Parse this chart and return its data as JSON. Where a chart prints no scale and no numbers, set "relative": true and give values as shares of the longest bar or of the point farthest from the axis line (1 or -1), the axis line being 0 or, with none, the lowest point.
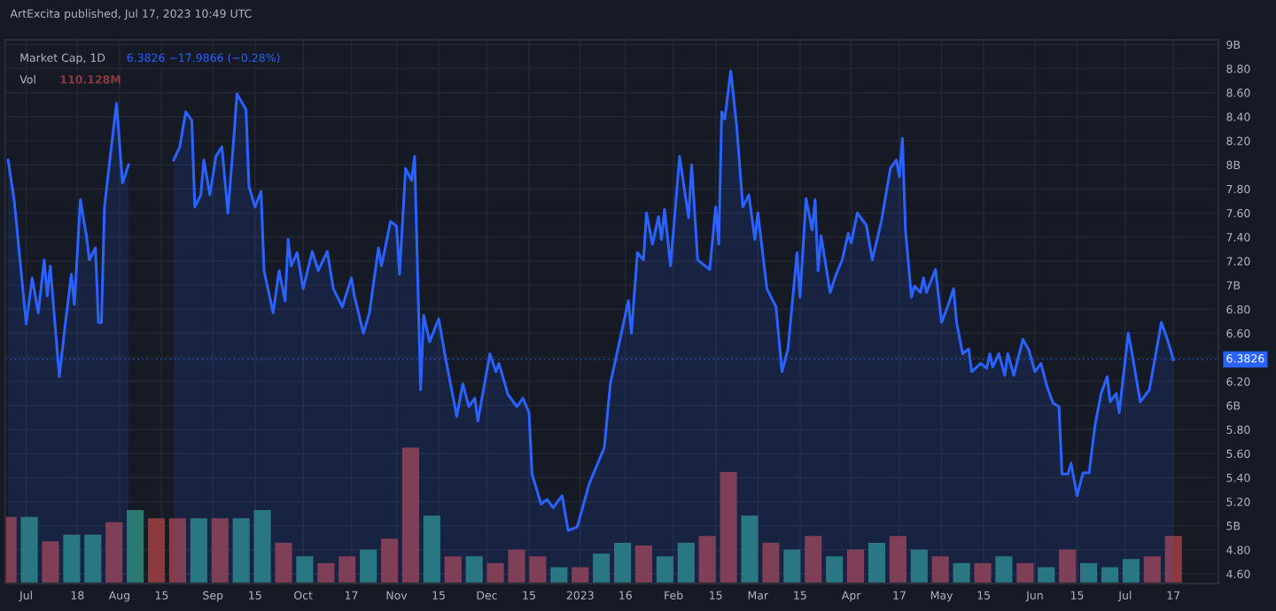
{
  "chart_data": [
    {
      "type": "area",
      "title": "Market Cap, 1D",
      "annotations": [
        "ArtExcita published, Jul 17, 2023 10:49 UTC",
        "6.3826 −17.9866 (−0.28%)"
      ],
      "xlim": [
        "2022-06-24",
        "2023-08-01"
      ],
      "ylim": [
        4.52,
        9.04
      ],
      "xticks": [
        {
          "value": "2022-07-01",
          "label": "Jul"
        },
        {
          "value": "2022-07-18",
          "label": "18"
        },
        {
          "value": "2022-08-01",
          "label": "Aug"
        },
        {
          "value": "2022-08-15",
          "label": "15"
        },
        {
          "value": "2022-09-01",
          "label": "Sep"
        },
        {
          "value": "2022-09-15",
          "label": "15"
        },
        {
          "value": "2022-10-01",
          "label": "Oct"
        },
        {
          "value": "2022-10-17",
          "label": "17"
        },
        {
          "value": "2022-11-01",
          "label": "Nov"
        },
        {
          "value": "2022-11-15",
          "label": "15"
        },
        {
          "value": "2022-12-01",
          "label": "Dec"
        },
        {
          "value": "2022-12-15",
          "label": "15"
        },
        {
          "value": "2023-01-01",
          "label": "2023"
        },
        {
          "value": "2023-01-16",
          "label": "16"
        },
        {
          "value": "2023-02-01",
          "label": "Feb"
        },
        {
          "value": "2023-02-15",
          "label": "15"
        },
        {
          "value": "2023-03-01",
          "label": "Mar"
        },
        {
          "value": "2023-03-15",
          "label": "15"
        },
        {
          "value": "2023-04-01",
          "label": "Apr"
        },
        {
          "value": "2023-04-17",
          "label": "17"
        },
        {
          "value": "2023-05-01",
          "label": "May"
        },
        {
          "value": "2023-05-15",
          "label": "15"
        },
        {
          "value": "2023-06-01",
          "label": "Jun"
        },
        {
          "value": "2023-06-15",
          "label": "15"
        },
        {
          "value": "2023-07-01",
          "label": "Jul"
        },
        {
          "value": "2023-07-17",
          "label": "17"
        }
      ],
      "yticks": [
        {
          "value": 4.6,
          "label": "4.60"
        },
        {
          "value": 4.8,
          "label": "4.80"
        },
        {
          "value": 5,
          "label": "5B"
        },
        {
          "value": 5.2,
          "label": "5.20"
        },
        {
          "value": 5.4,
          "label": "5.40"
        },
        {
          "value": 5.6,
          "label": "5.60"
        },
        {
          "value": 5.8,
          "label": "5.80"
        },
        {
          "value": 6,
          "label": "6B"
        },
        {
          "value": 6.2,
          "label": "6.20"
        },
        {
          "value": 6.4,
          "label": null
        },
        {
          "value": 6.6,
          "label": "6.60"
        },
        {
          "value": 6.8,
          "label": "6.80"
        },
        {
          "value": 7,
          "label": "7B"
        },
        {
          "value": 7.2,
          "label": "7.20"
        },
        {
          "value": 7.4,
          "label": "7.40"
        },
        {
          "value": 7.6,
          "label": "7.60"
        },
        {
          "value": 7.8,
          "label": "7.80"
        },
        {
          "value": 8,
          "label": "8B"
        },
        {
          "value": 8.2,
          "label": "8.20"
        },
        {
          "value": 8.4,
          "label": "8.40"
        },
        {
          "value": 8.6,
          "label": "8.60"
        },
        {
          "value": 8.8,
          "label": "8.80"
        },
        {
          "value": 9,
          "label": "9B"
        }
      ],
      "grid": true,
      "marker": "none",
      "line_style": "solid",
      "ref_lines": [
        {
          "axis": "y",
          "value": 6.3826,
          "label": "6.3826",
          "color": "#2962ff",
          "line_style": "dotted"
        }
      ],
      "series": [
        {
          "color": "#2962ff",
          "x": [
            "2022-06-25",
            "2022-06-27",
            "2022-07-01",
            "2022-07-03",
            "2022-07-05",
            "2022-07-07",
            "2022-07-08",
            "2022-07-09",
            "2022-07-12",
            "2022-07-14",
            "2022-07-16",
            "2022-07-17",
            "2022-07-19",
            "2022-07-21",
            "2022-07-22",
            "2022-07-24",
            "2022-07-25",
            "2022-07-26",
            "2022-07-27",
            "2022-07-29",
            "2022-07-31",
            "2022-08-02",
            "2022-08-04",
            "2022-08-05",
            "2022-08-17",
            "2022-08-19",
            "2022-08-21",
            "2022-08-23",
            "2022-08-25",
            "2022-08-26",
            "2022-08-28",
            "2022-08-29",
            "2022-08-31",
            "2022-09-02",
            "2022-09-04",
            "2022-09-06",
            "2022-09-08",
            "2022-09-09",
            "2022-09-12",
            "2022-09-13",
            "2022-09-15",
            "2022-09-17",
            "2022-09-18",
            "2022-09-21",
            "2022-09-23",
            "2022-09-25",
            "2022-09-26",
            "2022-09-27",
            "2022-09-29",
            "2022-10-01",
            "2022-10-04",
            "2022-10-06",
            "2022-10-09",
            "2022-10-11",
            "2022-10-14",
            "2022-10-17",
            "2022-10-18",
            "2022-10-21",
            "2022-10-23",
            "2022-10-26",
            "2022-10-27",
            "2022-10-30",
            "2022-11-01",
            "2022-11-02",
            "2022-11-04",
            "2022-11-06",
            "2022-11-07",
            "2022-11-09",
            "2022-11-10",
            "2022-11-12",
            "2022-11-15",
            "2022-11-17",
            "2022-11-21",
            "2022-11-23",
            "2022-11-25",
            "2022-11-27",
            "2022-11-28",
            "2022-12-02",
            "2022-12-04",
            "2022-12-05",
            "2022-12-08",
            "2022-12-11",
            "2022-12-13",
            "2022-12-15",
            "2022-12-16",
            "2022-12-19",
            "2022-12-21",
            "2022-12-23",
            "2022-12-26",
            "2022-12-28",
            "2022-12-31",
            "2023-01-04",
            "2023-01-09",
            "2023-01-11",
            "2023-01-17",
            "2023-01-18",
            "2023-01-20",
            "2023-01-22",
            "2023-01-23",
            "2023-01-25",
            "2023-01-27",
            "2023-01-28",
            "2023-01-29",
            "2023-01-31",
            "2023-02-03",
            "2023-02-06",
            "2023-02-07",
            "2023-02-09",
            "2023-02-13",
            "2023-02-15",
            "2023-02-16",
            "2023-02-17",
            "2023-02-18",
            "2023-02-20",
            "2023-02-22",
            "2023-02-24",
            "2023-02-26",
            "2023-02-28",
            "2023-03-01",
            "2023-03-04",
            "2023-03-07",
            "2023-03-09",
            "2023-03-11",
            "2023-03-14",
            "2023-03-15",
            "2023-03-17",
            "2023-03-19",
            "2023-03-20",
            "2023-03-21",
            "2023-03-22",
            "2023-03-25",
            "2023-03-27",
            "2023-03-29",
            "2023-03-31",
            "2023-04-01",
            "2023-04-03",
            "2023-04-06",
            "2023-04-08",
            "2023-04-11",
            "2023-04-14",
            "2023-04-16",
            "2023-04-17",
            "2023-04-18",
            "2023-04-19",
            "2023-04-21",
            "2023-04-22",
            "2023-04-24",
            "2023-04-25",
            "2023-04-26",
            "2023-04-29",
            "2023-05-01",
            "2023-05-03",
            "2023-05-05",
            "2023-05-06",
            "2023-05-08",
            "2023-05-10",
            "2023-05-11",
            "2023-05-14",
            "2023-05-16",
            "2023-05-17",
            "2023-05-18",
            "2023-05-20",
            "2023-05-22",
            "2023-05-23",
            "2023-05-25",
            "2023-05-28",
            "2023-05-30",
            "2023-06-01",
            "2023-06-03",
            "2023-06-05",
            "2023-06-07",
            "2023-06-09",
            "2023-06-10",
            "2023-06-12",
            "2023-06-13",
            "2023-06-15",
            "2023-06-17",
            "2023-06-19",
            "2023-06-21",
            "2023-06-23",
            "2023-06-25",
            "2023-06-26",
            "2023-06-28",
            "2023-06-29",
            "2023-07-02",
            "2023-07-03",
            "2023-07-06",
            "2023-07-09",
            "2023-07-13",
            "2023-07-15",
            "2023-07-17"
          ],
          "values": [
            8.04,
            7.71,
            6.68,
            7.06,
            6.77,
            7.21,
            6.91,
            7.16,
            6.24,
            6.68,
            7.09,
            6.84,
            7.71,
            7.41,
            7.21,
            7.31,
            6.69,
            6.69,
            7.65,
            8.09,
            8.51,
            7.85,
            8.0,
            null,
            null,
            8.04,
            8.15,
            8.44,
            8.37,
            7.65,
            7.75,
            8.04,
            7.75,
            8.07,
            8.15,
            7.6,
            8.24,
            8.59,
            8.46,
            7.82,
            7.65,
            7.78,
            7.12,
            6.77,
            7.12,
            6.87,
            7.38,
            7.16,
            7.27,
            6.97,
            7.28,
            7.12,
            7.28,
            6.97,
            6.82,
            7.06,
            6.91,
            6.6,
            6.77,
            7.31,
            7.16,
            7.53,
            7.49,
            7.09,
            7.97,
            7.87,
            8.07,
            6.13,
            6.75,
            6.53,
            6.72,
            6.43,
            5.91,
            6.18,
            5.99,
            6.06,
            5.87,
            6.43,
            6.28,
            6.35,
            6.09,
            5.99,
            6.06,
            5.94,
            5.43,
            5.18,
            5.22,
            5.15,
            5.25,
            4.96,
            4.99,
            5.35,
            5.65,
            6.18,
            6.87,
            6.6,
            7.27,
            7.21,
            7.6,
            7.34,
            7.57,
            7.38,
            7.63,
            7.16,
            8.07,
            7.56,
            8.0,
            7.21,
            7.13,
            7.65,
            7.34,
            8.44,
            8.38,
            8.78,
            8.31,
            7.65,
            7.75,
            7.38,
            7.6,
            6.97,
            6.82,
            6.28,
            6.47,
            7.27,
            6.9,
            7.72,
            7.46,
            7.71,
            7.12,
            7.41,
            6.94,
            7.09,
            7.21,
            7.43,
            7.35,
            7.6,
            7.5,
            7.21,
            7.53,
            7.97,
            8.04,
            7.9,
            8.22,
            7.46,
            6.9,
            6.99,
            6.94,
            7.06,
            6.94,
            7.13,
            6.69,
            6.82,
            6.97,
            6.69,
            6.43,
            6.47,
            6.28,
            6.35,
            6.31,
            6.43,
            6.32,
            6.43,
            6.25,
            6.43,
            6.25,
            6.55,
            6.46,
            6.28,
            6.35,
            6.16,
            6.02,
            5.99,
            5.43,
            5.43,
            5.52,
            5.25,
            5.44,
            5.44,
            5.84,
            6.1,
            6.24,
            6.03,
            6.1,
            5.94,
            6.6,
            6.47,
            6.03,
            6.13,
            6.69,
            6.55,
            6.38
          ]
        }
      ]
    },
    {
      "type": "bar",
      "relative": true,
      "annotations": [
        "110.128M"
      ],
      "categories": [
        null,
        null,
        null,
        null,
        null,
        null,
        null,
        null,
        null,
        null,
        null,
        null,
        null,
        null,
        null,
        null,
        null,
        null,
        null,
        null,
        null,
        null,
        null,
        null,
        null,
        null,
        null,
        null,
        null,
        null,
        null,
        null,
        null,
        null,
        null,
        null,
        null,
        null,
        null,
        null,
        null,
        null,
        null,
        null,
        null,
        null,
        null,
        null,
        null,
        null,
        null,
        null,
        null,
        null,
        null,
        null
      ],
      "series": [
        {
          "name": "Vol",
          "values": [
            0.49,
            0.49,
            0.31,
            0.36,
            0.36,
            0.45,
            0.54,
            0.48,
            0.48,
            0.48,
            0.48,
            0.48,
            0.54,
            0.3,
            0.2,
            0.15,
            0.2,
            0.25,
            0.33,
            1.0,
            0.5,
            0.2,
            0.2,
            0.15,
            0.25,
            0.2,
            0.12,
            0.12,
            0.22,
            0.3,
            0.28,
            0.2,
            0.3,
            0.35,
            0.82,
            0.5,
            0.3,
            0.25,
            0.35,
            0.2,
            0.25,
            0.3,
            0.35,
            0.25,
            0.2,
            0.15,
            0.15,
            0.2,
            0.15,
            0.12,
            0.25,
            0.15,
            0.12,
            0.18,
            0.2,
            0.35
          ],
          "colors": [
            "#8c3a3e",
            "#2b7a72",
            "#8c3a3e",
            "#2b7a72",
            "#2b7a72",
            "#8c3a3e",
            "#2b7a72",
            "#8c3a3e",
            "#8c3a3e",
            "#2b7a72",
            "#8c3a3e",
            "#2b7a72",
            "#2b7a72",
            "#8c3a3e",
            "#2b7a72",
            "#8c3a3e",
            "#8c3a3e",
            "#2b7a72",
            "#8c3a3e",
            "#8c3a3e",
            "#2b7a72",
            "#8c3a3e",
            "#2b7a72",
            "#8c3a3e",
            "#8c3a3e",
            "#8c3a3e",
            "#2b7a72",
            "#8c3a3e",
            "#2b7a72",
            "#2b7a72",
            "#8c3a3e",
            "#2b7a72",
            "#2b7a72",
            "#8c3a3e",
            "#8c3a3e",
            "#2b7a72",
            "#8c3a3e",
            "#2b7a72",
            "#8c3a3e",
            "#2b7a72",
            "#8c3a3e",
            "#2b7a72",
            "#8c3a3e",
            "#2b7a72",
            "#8c3a3e",
            "#2b7a72",
            "#8c3a3e",
            "#2b7a72",
            "#8c3a3e",
            "#2b7a72",
            "#8c3a3e",
            "#2b7a72",
            "#2b7a72",
            "#2b7a72",
            "#8c3a3e",
            "#8c3a3e"
          ]
        }
      ]
    }
  ]
}
